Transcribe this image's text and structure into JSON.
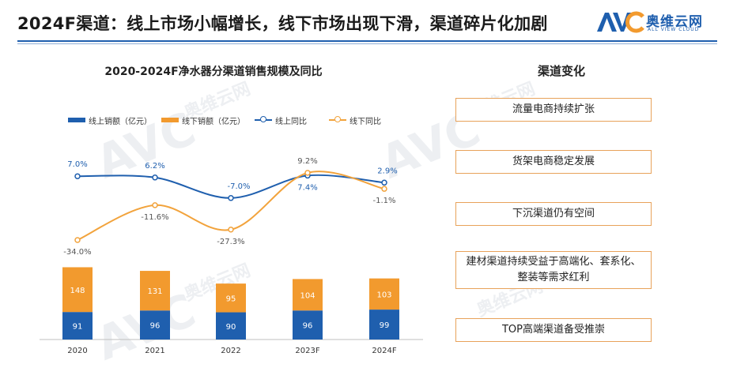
{
  "header": {
    "title": "2024F渠道：线上市场小幅增长，线下市场出现下滑，渠道碎片化加剧",
    "logo_cn": "奥维云网",
    "logo_en": "ALL VIEW CLOUD",
    "logo_mark": "AVC"
  },
  "colors": {
    "online_bar": "#1f5fae",
    "offline_bar": "#f29a2e",
    "online_line": "#1f5fae",
    "offline_line": "#f2a33c",
    "accent": "#1f5fae"
  },
  "chart_data": {
    "type": "bar",
    "title": "2020-2024F净水器分渠道销售规模及同比",
    "categories": [
      "2020",
      "2021",
      "2022",
      "2023F",
      "2024F"
    ],
    "series": [
      {
        "name": "线上销额（亿元）",
        "type": "bar",
        "stack": "sales",
        "values": [
          91,
          96,
          90,
          96,
          99
        ]
      },
      {
        "name": "线下销额（亿元）",
        "type": "bar",
        "stack": "sales",
        "values": [
          148,
          131,
          95,
          104,
          103
        ]
      },
      {
        "name": "线上同比",
        "type": "line",
        "values": [
          7.0,
          6.2,
          -7.0,
          7.4,
          2.9
        ],
        "labels": [
          "7.0%",
          "6.2%",
          "-7.0%",
          "7.4%",
          "2.9%"
        ]
      },
      {
        "name": "线下同比",
        "type": "line",
        "values": [
          -34.0,
          -11.6,
          -27.3,
          9.2,
          -1.1
        ],
        "labels": [
          "-34.0%",
          "-11.6%",
          "-27.3%",
          "9.2%",
          "-1.1%"
        ]
      }
    ],
    "legend_position": "top",
    "grid": false
  },
  "changes": {
    "title": "渠道变化",
    "items": [
      "流量电商持续扩张",
      "货架电商稳定发展",
      "下沉渠道仍有空间",
      "建材渠道持续受益于高端化、套系化、整装等需求红利",
      "TOP高端渠道备受推崇"
    ]
  }
}
